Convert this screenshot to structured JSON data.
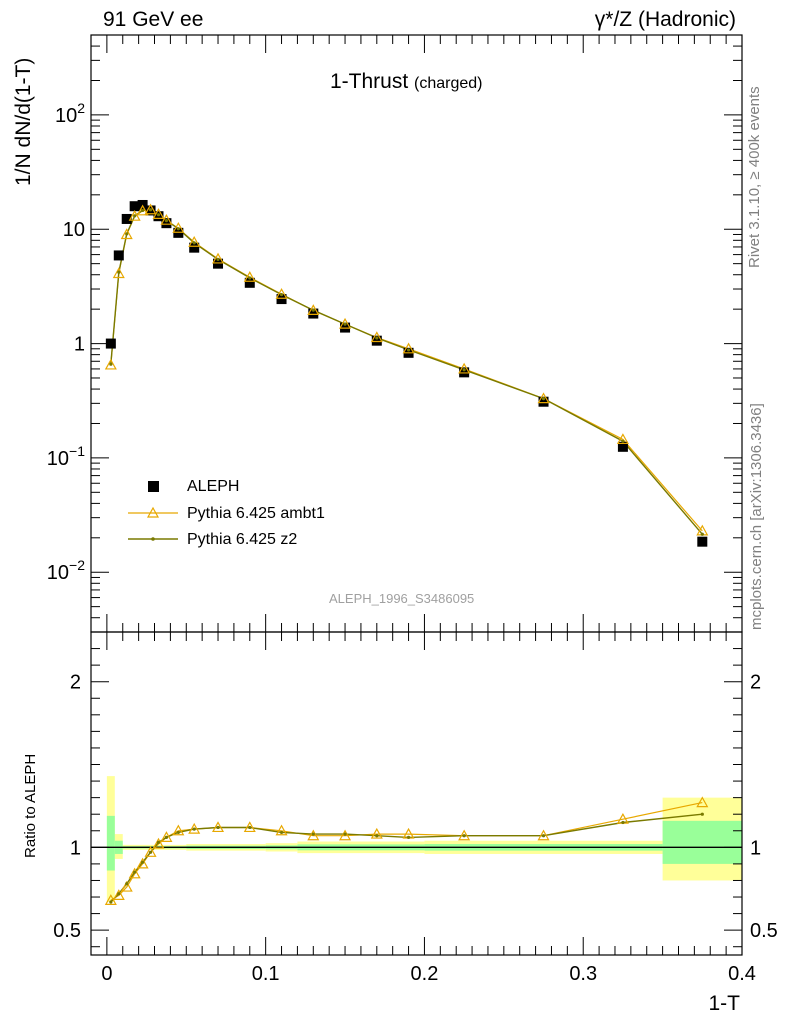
{
  "header": {
    "left": "91 GeV ee",
    "right_prefix": "γ*/Z",
    "right_suffix": " (Hadronic)"
  },
  "side_labels": {
    "rivet": "Rivet 3.1.10, ≥ 400k events",
    "mcplots": "mcplots.cern.ch [arXiv:1306.3436]"
  },
  "chart_data": [
    {
      "type": "scatter",
      "title": "1-Thrust",
      "subtitle": "(charged)",
      "ylabel": "1/N dN/d(1-T)",
      "yscale": "log",
      "ylim": [
        0.003,
        500
      ],
      "xlim": [
        -0.01,
        0.4
      ],
      "analysis_label": "ALEPH_1996_S3486095",
      "legend_position": "bottom-left",
      "yticks": [
        {
          "value": 0.01,
          "base": "10",
          "exp": "−2"
        },
        {
          "value": 0.1,
          "base": "10",
          "exp": "−1"
        },
        {
          "value": 1,
          "base": "1",
          "exp": ""
        },
        {
          "value": 10,
          "base": "10",
          "exp": ""
        },
        {
          "value": 100,
          "base": "10",
          "exp": "2"
        }
      ],
      "series": [
        {
          "name": "ALEPH",
          "color": "#000000",
          "marker": "square",
          "x": [
            0.0025,
            0.0075,
            0.0125,
            0.0175,
            0.0225,
            0.0275,
            0.0325,
            0.0375,
            0.045,
            0.055,
            0.07,
            0.09,
            0.11,
            0.13,
            0.15,
            0.17,
            0.19,
            0.225,
            0.275,
            0.325,
            0.375
          ],
          "y": [
            1.0,
            5.9,
            12.3,
            15.9,
            16.3,
            14.6,
            13.0,
            11.3,
            9.3,
            6.9,
            5.0,
            3.4,
            2.45,
            1.83,
            1.38,
            1.06,
            0.83,
            0.56,
            0.31,
            0.125,
            0.0185
          ]
        },
        {
          "name": "Pythia 6.425 ambt1",
          "color": "#e8a800",
          "marker": "triangle",
          "x": [
            0.0025,
            0.0075,
            0.0125,
            0.0175,
            0.0225,
            0.0275,
            0.0325,
            0.0375,
            0.045,
            0.055,
            0.07,
            0.09,
            0.11,
            0.13,
            0.15,
            0.17,
            0.19,
            0.225,
            0.275,
            0.325,
            0.375
          ],
          "y": [
            0.65,
            4.1,
            9.0,
            13.0,
            14.5,
            14.8,
            13.5,
            12.0,
            10.2,
            7.7,
            5.5,
            3.8,
            2.7,
            1.95,
            1.48,
            1.13,
            0.9,
            0.6,
            0.33,
            0.145,
            0.023
          ]
        },
        {
          "name": "Pythia 6.425 z2",
          "color": "#7a7a00",
          "marker": "dot",
          "x": [
            0.0025,
            0.0075,
            0.0125,
            0.0175,
            0.0225,
            0.0275,
            0.0325,
            0.0375,
            0.045,
            0.055,
            0.07,
            0.09,
            0.11,
            0.13,
            0.15,
            0.17,
            0.19,
            0.225,
            0.275,
            0.325,
            0.375
          ],
          "y": [
            0.66,
            4.2,
            9.1,
            13.1,
            14.6,
            14.8,
            13.4,
            11.9,
            10.1,
            7.6,
            5.45,
            3.75,
            2.68,
            1.96,
            1.48,
            1.12,
            0.88,
            0.59,
            0.33,
            0.14,
            0.0215
          ]
        }
      ]
    },
    {
      "type": "line",
      "ylabel": "Ratio to ALEPH",
      "ylim": [
        0.35,
        2.3
      ],
      "xlim": [
        -0.01,
        0.4
      ],
      "xlabel": "1-T",
      "yticks": [
        0.5,
        1,
        2
      ],
      "xticks": [
        {
          "value": 0,
          "label": "0"
        },
        {
          "value": 0.1,
          "label": "0.1"
        },
        {
          "value": 0.2,
          "label": "0.2"
        },
        {
          "value": 0.3,
          "label": "0.3"
        },
        {
          "value": 0.4,
          "label": "0.4"
        }
      ],
      "bands": {
        "outer_color": "#ffff99",
        "inner_color": "#99ff99",
        "bins": [
          {
            "x0": 0.0,
            "x1": 0.005,
            "outer": [
              0.67,
              1.43
            ],
            "inner": [
              0.86,
              1.19
            ]
          },
          {
            "x0": 0.005,
            "x1": 0.01,
            "outer": [
              0.93,
              1.08
            ],
            "inner": [
              0.96,
              1.04
            ]
          },
          {
            "x0": 0.01,
            "x1": 0.05,
            "outer": [
              0.985,
              1.015
            ],
            "inner": [
              0.993,
              1.007
            ]
          },
          {
            "x0": 0.05,
            "x1": 0.1,
            "outer": [
              0.98,
              1.02
            ],
            "inner": [
              0.99,
              1.01
            ]
          },
          {
            "x0": 0.1,
            "x1": 0.12,
            "outer": [
              0.975,
              1.025
            ],
            "inner": [
              0.988,
              1.012
            ]
          },
          {
            "x0": 0.12,
            "x1": 0.2,
            "outer": [
              0.965,
              1.035
            ],
            "inner": [
              0.982,
              1.018
            ]
          },
          {
            "x0": 0.2,
            "x1": 0.35,
            "outer": [
              0.96,
              1.04
            ],
            "inner": [
              0.98,
              1.02
            ]
          },
          {
            "x0": 0.35,
            "x1": 0.4,
            "outer": [
              0.8,
              1.3
            ],
            "inner": [
              0.9,
              1.16
            ]
          }
        ]
      },
      "series": [
        {
          "name": "Pythia 6.425 ambt1",
          "color": "#e8a800",
          "x": [
            0.0025,
            0.0075,
            0.0125,
            0.0175,
            0.0225,
            0.0275,
            0.0325,
            0.0375,
            0.045,
            0.055,
            0.07,
            0.09,
            0.11,
            0.13,
            0.15,
            0.17,
            0.19,
            0.225,
            0.275,
            0.325,
            0.375
          ],
          "y": [
            0.68,
            0.71,
            0.76,
            0.84,
            0.9,
            0.97,
            1.02,
            1.06,
            1.1,
            1.11,
            1.12,
            1.12,
            1.1,
            1.07,
            1.07,
            1.08,
            1.08,
            1.07,
            1.07,
            1.17,
            1.27
          ]
        },
        {
          "name": "Pythia 6.425 z2",
          "color": "#7a7a00",
          "x": [
            0.0025,
            0.0075,
            0.0125,
            0.0175,
            0.0225,
            0.0275,
            0.0325,
            0.0375,
            0.045,
            0.055,
            0.07,
            0.09,
            0.11,
            0.13,
            0.15,
            0.17,
            0.19,
            0.225,
            0.275,
            0.325,
            0.375
          ],
          "y": [
            0.67,
            0.72,
            0.78,
            0.85,
            0.91,
            0.97,
            1.03,
            1.06,
            1.09,
            1.11,
            1.12,
            1.12,
            1.09,
            1.08,
            1.08,
            1.07,
            1.06,
            1.07,
            1.07,
            1.15,
            1.2
          ]
        }
      ]
    }
  ]
}
